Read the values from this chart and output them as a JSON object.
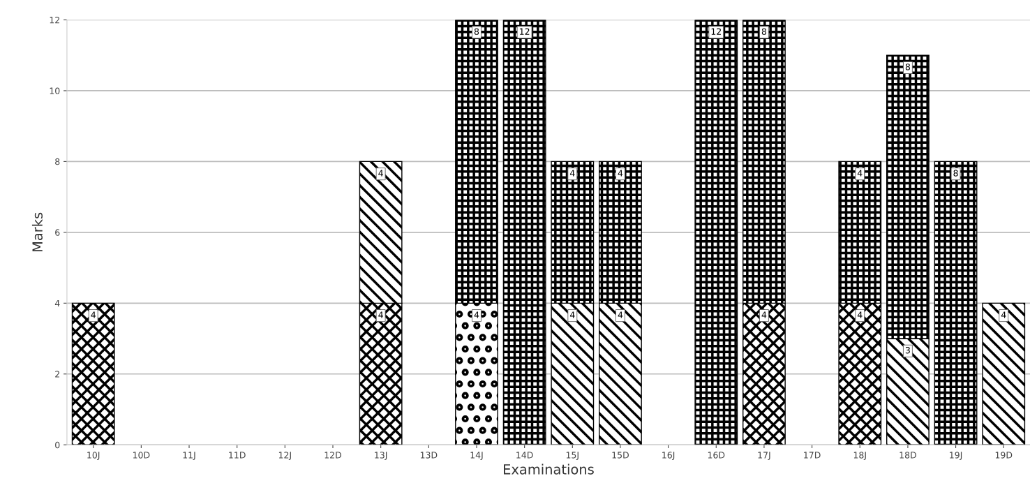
{
  "chart_data": {
    "type": "bar",
    "stacked": true,
    "xlabel": "Examinations",
    "ylabel": "Marks",
    "categories": [
      "10J",
      "10D",
      "11J",
      "11D",
      "12J",
      "12D",
      "13J",
      "13D",
      "14J",
      "14D",
      "15J",
      "15D",
      "16J",
      "16D",
      "17J",
      "17D",
      "18J",
      "18D",
      "19J",
      "19D"
    ],
    "series": [
      {
        "color": "#000000",
        "values": [
          4,
          null,
          null,
          null,
          null,
          null,
          4,
          null,
          null,
          null,
          null,
          null,
          null,
          null,
          4,
          null,
          4,
          null,
          null,
          null
        ]
      },
      {
        "color": "#000000",
        "values": [
          null,
          null,
          null,
          null,
          null,
          null,
          null,
          null,
          4,
          null,
          null,
          null,
          null,
          null,
          null,
          null,
          null,
          null,
          null,
          null
        ]
      },
      {
        "color": "#000000",
        "values": [
          null,
          null,
          null,
          null,
          null,
          null,
          4,
          null,
          null,
          null,
          4,
          4,
          null,
          null,
          null,
          null,
          null,
          3,
          null,
          4
        ]
      },
      {
        "color": "#000000",
        "values": [
          null,
          null,
          null,
          null,
          null,
          null,
          null,
          null,
          8,
          12,
          4,
          4,
          null,
          12,
          8,
          null,
          4,
          8,
          8,
          null
        ]
      }
    ],
    "ylim": [
      0,
      12
    ],
    "yticks": [
      0,
      2,
      4,
      6,
      8,
      10,
      12
    ],
    "grid": "y",
    "data_labels": true,
    "legend": false
  }
}
